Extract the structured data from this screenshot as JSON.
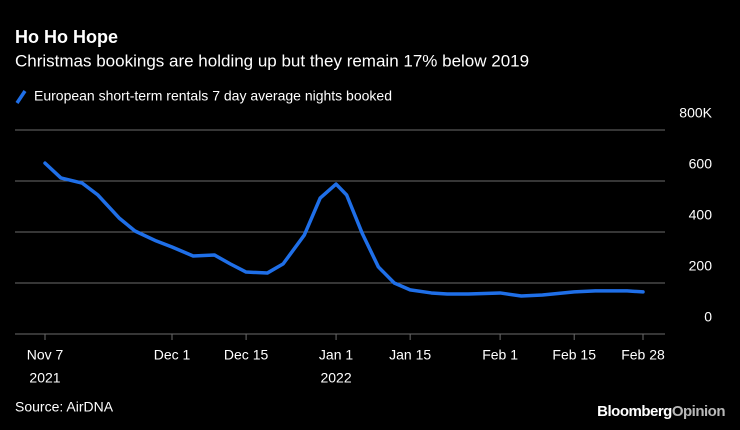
{
  "chart_data": {
    "type": "line",
    "title": "Ho Ho Hope",
    "subtitle": "Christmas bookings are holding up but they remain 17% below 2019",
    "source": "Source: AirDNA",
    "brand": [
      "Bloomberg",
      "Opinion"
    ],
    "x": [
      "2021-11-07",
      "2021-11-10",
      "2021-11-14",
      "2021-11-17",
      "2021-11-21",
      "2021-11-24",
      "2021-11-28",
      "2021-12-01",
      "2021-12-05",
      "2021-12-09",
      "2021-12-12",
      "2021-12-15",
      "2021-12-19",
      "2021-12-22",
      "2021-12-26",
      "2021-12-29",
      "2022-01-01",
      "2022-01-03",
      "2022-01-06",
      "2022-01-09",
      "2022-01-12",
      "2022-01-15",
      "2022-01-19",
      "2022-01-22",
      "2022-01-26",
      "2022-02-01",
      "2022-02-05",
      "2022-02-09",
      "2022-02-15",
      "2022-02-19",
      "2022-02-25",
      "2022-02-28"
    ],
    "series": [
      {
        "name": "European short-term rentals 7 day average nights booked",
        "color": "#1f6fe8",
        "values": [
          670,
          612,
          592,
          545,
          455,
          404,
          365,
          341,
          306,
          310,
          275,
          243,
          239,
          275,
          388,
          533,
          588,
          545,
          392,
          263,
          200,
          173,
          161,
          157,
          157,
          161,
          149,
          153,
          165,
          169,
          169,
          165
        ]
      }
    ],
    "xlim": [
      "2021-11-07",
      "2022-02-28"
    ],
    "xticks": [
      {
        "value": "2021-11-07",
        "label": "Nov 7",
        "year": "2021"
      },
      {
        "value": "2021-12-01",
        "label": "Dec 1"
      },
      {
        "value": "2021-12-15",
        "label": "Dec 15"
      },
      {
        "value": "2022-01-01",
        "label": "Jan 1",
        "year": "2022"
      },
      {
        "value": "2022-01-15",
        "label": "Jan 15"
      },
      {
        "value": "2022-02-01",
        "label": "Feb 1"
      },
      {
        "value": "2022-02-15",
        "label": "Feb 15"
      },
      {
        "value": "2022-02-28",
        "label": "Feb 28"
      }
    ],
    "ylim": [
      0,
      800
    ],
    "yticks": [
      0,
      200,
      400,
      600,
      {
        "value": 800,
        "label": "800K"
      }
    ],
    "grid": true
  }
}
